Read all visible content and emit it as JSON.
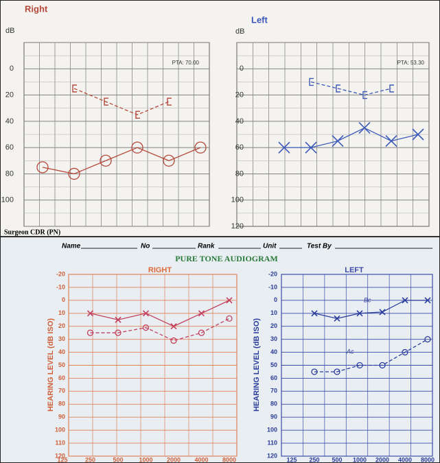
{
  "header": {
    "footer_text": "Surgeon CDR (PN)",
    "name": "Name",
    "no": "No",
    "rank": "Rank",
    "unit": "Unit",
    "test_by": "Test By",
    "title": "PURE TONE AUDIOGRAM"
  },
  "chart_data": [
    {
      "type": "line",
      "title": "Right",
      "y_label": "dB",
      "annotation": "PTA: 70.00",
      "grid": true,
      "categories": [
        null,
        null,
        null,
        null,
        null,
        null
      ],
      "ylim": [
        -20,
        120
      ],
      "yticks": [
        0,
        20,
        40,
        60,
        80,
        100
      ],
      "series": [
        {
          "color": "#b5483a",
          "marker": "circle",
          "dashed": false,
          "values": [
            75,
            80,
            70,
            60,
            70,
            60
          ]
        },
        {
          "color": "#b5483a",
          "marker": "bracket",
          "dashed": true,
          "values": [
            null,
            15,
            25,
            35,
            25,
            null
          ]
        }
      ]
    },
    {
      "type": "line",
      "title": "Left",
      "y_label": "dB",
      "annotation": "PTA: 53.30",
      "grid": true,
      "categories": [
        null,
        null,
        null,
        null,
        null,
        null
      ],
      "ylim": [
        -20,
        120
      ],
      "yticks": [
        0,
        20,
        40,
        60,
        80,
        100,
        120
      ],
      "series": [
        {
          "color": "#3b58b8",
          "marker": "x",
          "dashed": false,
          "values": [
            60,
            60,
            55,
            45,
            55,
            50
          ]
        },
        {
          "color": "#3b58b8",
          "marker": "bracket",
          "dashed": true,
          "values": [
            null,
            10,
            15,
            20,
            15,
            null
          ]
        }
      ]
    },
    {
      "type": "line",
      "title": "RIGHT",
      "y_label": "HEARING LEVEL (dB ISO)",
      "grid": true,
      "categories": [
        125,
        250,
        500,
        1000,
        2000,
        4000,
        8000
      ],
      "ylim": [
        -20,
        120
      ],
      "yticks": [
        -20,
        -10,
        0,
        10,
        20,
        30,
        40,
        50,
        60,
        70,
        80,
        90,
        100,
        110,
        120
      ],
      "series": [
        {
          "color": "#c2405e",
          "marker": "x",
          "dashed": false,
          "values": [
            null,
            10,
            15,
            10,
            20,
            10,
            0
          ]
        },
        {
          "color": "#c2405e",
          "marker": "circle",
          "dashed": true,
          "values": [
            null,
            25,
            25,
            21,
            31,
            25,
            14
          ]
        }
      ]
    },
    {
      "type": "line",
      "title": "LEFT",
      "y_label": "HEARING LEVEL (dB ISO)",
      "grid": true,
      "annotations": [
        "Bc",
        "Ac"
      ],
      "categories": [
        125,
        250,
        500,
        1000,
        2000,
        4000,
        8000
      ],
      "ylim": [
        -20,
        120
      ],
      "yticks": [
        -20,
        -10,
        0,
        10,
        20,
        30,
        40,
        50,
        60,
        70,
        80,
        90,
        100,
        110,
        120
      ],
      "series": [
        {
          "color": "#2a3c9c",
          "marker": "x",
          "dashed": false,
          "values": [
            null,
            10,
            14,
            10,
            9,
            0,
            0
          ]
        },
        {
          "color": "#2a3c9c",
          "marker": "circle",
          "dashed": true,
          "values": [
            null,
            55,
            55,
            50,
            50,
            40,
            30
          ]
        }
      ]
    }
  ]
}
